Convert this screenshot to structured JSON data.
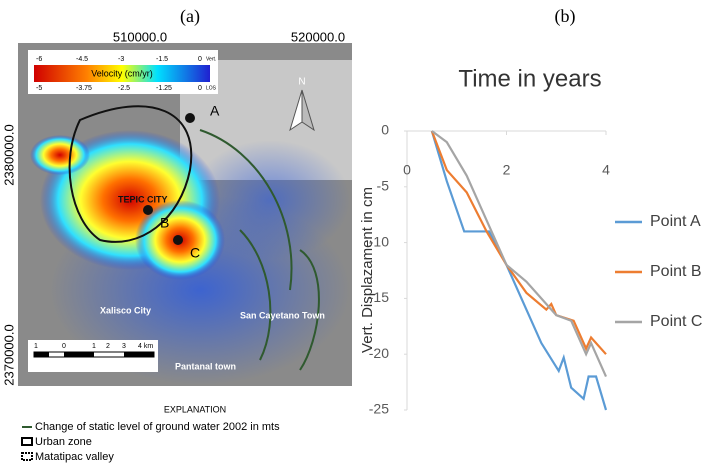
{
  "panel_labels": [
    "(a)",
    "(b)"
  ],
  "map": {
    "x_coords": [
      "510000.0",
      "520000.0"
    ],
    "y_coords": [
      "2380000.0",
      "2370000.0"
    ],
    "velocity_title": "Velocity (cm/yr)",
    "vert_scale": [
      "-6",
      "-4.5",
      "-3",
      "-1.5",
      "0",
      "Vert."
    ],
    "los_scale": [
      "-5",
      "-3.75",
      "-2.5",
      "-1.25",
      "0",
      "LOS"
    ],
    "north": "N",
    "points": [
      "A",
      "B",
      "C"
    ],
    "places": [
      "TEPIC CITY",
      "Xalisco City",
      "San Cayetano Town",
      "Pantanal town"
    ],
    "scale_bar": [
      "1",
      "0",
      "1",
      "2",
      "3",
      "4 km"
    ],
    "explanation_title": "EXPLANATION",
    "explanation": [
      "Change of static level of ground water 2002 in mts",
      "Urban zone",
      "Matatipac valley"
    ]
  },
  "chart_data": {
    "type": "line",
    "title": "Time in years",
    "y_label": "Vert. Displazament in cm",
    "xlim": [
      0,
      4
    ],
    "xticks": [
      0,
      2,
      4
    ],
    "ylim": [
      -25,
      0
    ],
    "yticks": [
      0,
      -5,
      -10,
      -15,
      -20,
      -25
    ],
    "legend_position": "right",
    "series": [
      {
        "name": "Point A",
        "color": "#5b9bd5",
        "x": [
          0.5,
          0.8,
          1.15,
          1.65,
          2.0,
          2.3,
          2.7,
          3.05,
          3.15,
          3.3,
          3.55,
          3.65,
          3.8,
          4.0
        ],
        "values": [
          0,
          -4.5,
          -9,
          -9,
          -12,
          -15,
          -19,
          -21.5,
          -20.3,
          -23,
          -24,
          -22,
          -22,
          -25
        ]
      },
      {
        "name": "Point B",
        "color": "#ed7d31",
        "x": [
          0.5,
          0.8,
          1.2,
          1.6,
          2.0,
          2.4,
          2.8,
          2.9,
          3.0,
          3.35,
          3.6,
          3.7,
          4.0
        ],
        "values": [
          0,
          -3.5,
          -5.5,
          -9,
          -12,
          -14.5,
          -16,
          -15.5,
          -16.5,
          -17,
          -19.5,
          -18.5,
          -20
        ]
      },
      {
        "name": "Point C",
        "color": "#a5a5a5",
        "x": [
          0.5,
          0.8,
          1.2,
          1.6,
          2.0,
          2.4,
          2.8,
          3.0,
          3.3,
          3.6,
          3.7,
          4.0
        ],
        "values": [
          0,
          -1,
          -4,
          -8,
          -12,
          -13.5,
          -15.5,
          -16.5,
          -17,
          -20,
          -19,
          -22
        ]
      }
    ]
  }
}
